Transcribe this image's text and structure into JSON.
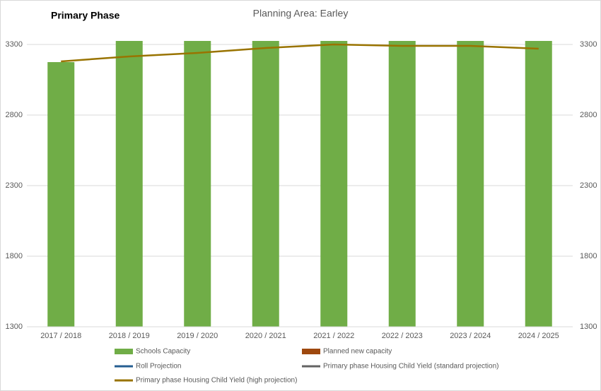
{
  "chart_data": {
    "type": "bar",
    "heading": "Primary Phase",
    "title": "Planning Area: Earley",
    "categories": [
      "2017 / 2018",
      "2018 / 2019",
      "2019 / 2020",
      "2020 / 2021",
      "2021 / 2022",
      "2022 / 2023",
      "2023 / 2024",
      "2024 / 2025"
    ],
    "series": [
      {
        "name": "Schools Capacity",
        "type": "bar",
        "color": "#70ad47",
        "values": [
          3175,
          3325,
          3325,
          3325,
          3325,
          3325,
          3325,
          3325
        ]
      },
      {
        "name": "Planned new capacity",
        "type": "bar",
        "color": "#9e480e",
        "values": [
          null,
          null,
          null,
          null,
          null,
          null,
          null,
          null
        ]
      },
      {
        "name": "Roll Projection",
        "type": "line",
        "color": "#255e91",
        "values": [
          null,
          null,
          null,
          null,
          null,
          null,
          null,
          null
        ]
      },
      {
        "name": "Primary phase Housing Child Yield (standard projection)",
        "type": "line",
        "color": "#636363",
        "values": [
          null,
          null,
          null,
          null,
          null,
          null,
          null,
          null
        ]
      },
      {
        "name": "Primary phase Housing Child Yield (high projection)",
        "type": "line",
        "color": "#997300",
        "values": [
          3180,
          3215,
          3240,
          3275,
          3300,
          3290,
          3290,
          3270
        ]
      }
    ],
    "ylim": [
      1300,
      3325
    ],
    "yticks": [
      1300,
      1800,
      2300,
      2800,
      3300
    ],
    "y2lim": [
      1300,
      3325
    ],
    "y2ticks": [
      1300,
      1800,
      2300,
      2800,
      3300
    ],
    "grid": true
  }
}
